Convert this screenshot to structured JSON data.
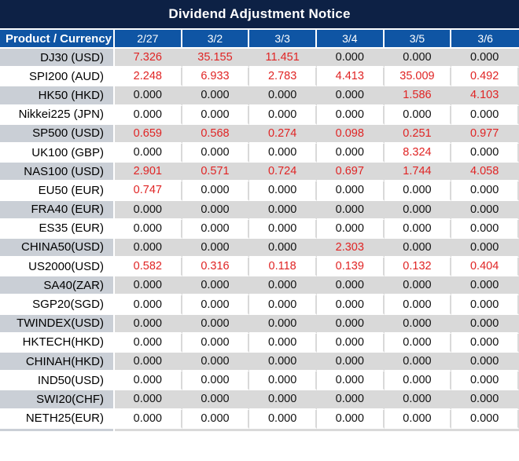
{
  "title": "Dividend Adjustment Notice",
  "colors": {
    "title_bar_bg": "#0d2145",
    "header_row_bg": "#0f55a4",
    "row_gray_bg": "#d9d9d9",
    "product_gray_bg": "#cacfd6",
    "row_white_bg": "#ffffff",
    "value_red": "#e02424",
    "value_black": "#111111",
    "header_text": "#ffffff"
  },
  "table": {
    "header": {
      "product_label": "Product / Currency",
      "dates": [
        "2/27",
        "3/2",
        "3/3",
        "3/4",
        "3/5",
        "3/6"
      ]
    },
    "rows": [
      {
        "product": "DJ30 (USD)",
        "values": [
          "7.326",
          "35.155",
          "11.451",
          "0.000",
          "0.000",
          "0.000"
        ],
        "red": [
          true,
          true,
          true,
          false,
          false,
          false
        ]
      },
      {
        "product": "SPI200 (AUD)",
        "values": [
          "2.248",
          "6.933",
          "2.783",
          "4.413",
          "35.009",
          "0.492"
        ],
        "red": [
          true,
          true,
          true,
          true,
          true,
          true
        ]
      },
      {
        "product": "HK50 (HKD)",
        "values": [
          "0.000",
          "0.000",
          "0.000",
          "0.000",
          "1.586",
          "4.103"
        ],
        "red": [
          false,
          false,
          false,
          false,
          true,
          true
        ]
      },
      {
        "product": "Nikkei225 (JPN)",
        "values": [
          "0.000",
          "0.000",
          "0.000",
          "0.000",
          "0.000",
          "0.000"
        ],
        "red": [
          false,
          false,
          false,
          false,
          false,
          false
        ]
      },
      {
        "product": "SP500 (USD)",
        "values": [
          "0.659",
          "0.568",
          "0.274",
          "0.098",
          "0.251",
          "0.977"
        ],
        "red": [
          true,
          true,
          true,
          true,
          true,
          true
        ]
      },
      {
        "product": "UK100 (GBP)",
        "values": [
          "0.000",
          "0.000",
          "0.000",
          "0.000",
          "8.324",
          "0.000"
        ],
        "red": [
          false,
          false,
          false,
          false,
          true,
          false
        ]
      },
      {
        "product": "NAS100 (USD)",
        "values": [
          "2.901",
          "0.571",
          "0.724",
          "0.697",
          "1.744",
          "4.058"
        ],
        "red": [
          true,
          true,
          true,
          true,
          true,
          true
        ]
      },
      {
        "product": "EU50 (EUR)",
        "values": [
          "0.747",
          "0.000",
          "0.000",
          "0.000",
          "0.000",
          "0.000"
        ],
        "red": [
          true,
          false,
          false,
          false,
          false,
          false
        ]
      },
      {
        "product": "FRA40 (EUR)",
        "values": [
          "0.000",
          "0.000",
          "0.000",
          "0.000",
          "0.000",
          "0.000"
        ],
        "red": [
          false,
          false,
          false,
          false,
          false,
          false
        ]
      },
      {
        "product": "ES35 (EUR)",
        "values": [
          "0.000",
          "0.000",
          "0.000",
          "0.000",
          "0.000",
          "0.000"
        ],
        "red": [
          false,
          false,
          false,
          false,
          false,
          false
        ]
      },
      {
        "product": "CHINA50(USD)",
        "values": [
          "0.000",
          "0.000",
          "0.000",
          "2.303",
          "0.000",
          "0.000"
        ],
        "red": [
          false,
          false,
          false,
          true,
          false,
          false
        ]
      },
      {
        "product": "US2000(USD)",
        "values": [
          "0.582",
          "0.316",
          "0.118",
          "0.139",
          "0.132",
          "0.404"
        ],
        "red": [
          true,
          true,
          true,
          true,
          true,
          true
        ]
      },
      {
        "product": "SA40(ZAR)",
        "values": [
          "0.000",
          "0.000",
          "0.000",
          "0.000",
          "0.000",
          "0.000"
        ],
        "red": [
          false,
          false,
          false,
          false,
          false,
          false
        ]
      },
      {
        "product": "SGP20(SGD)",
        "values": [
          "0.000",
          "0.000",
          "0.000",
          "0.000",
          "0.000",
          "0.000"
        ],
        "red": [
          false,
          false,
          false,
          false,
          false,
          false
        ]
      },
      {
        "product": "TWINDEX(USD)",
        "values": [
          "0.000",
          "0.000",
          "0.000",
          "0.000",
          "0.000",
          "0.000"
        ],
        "red": [
          false,
          false,
          false,
          false,
          false,
          false
        ]
      },
      {
        "product": "HKTECH(HKD)",
        "values": [
          "0.000",
          "0.000",
          "0.000",
          "0.000",
          "0.000",
          "0.000"
        ],
        "red": [
          false,
          false,
          false,
          false,
          false,
          false
        ]
      },
      {
        "product": "CHINAH(HKD)",
        "values": [
          "0.000",
          "0.000",
          "0.000",
          "0.000",
          "0.000",
          "0.000"
        ],
        "red": [
          false,
          false,
          false,
          false,
          false,
          false
        ]
      },
      {
        "product": "IND50(USD)",
        "values": [
          "0.000",
          "0.000",
          "0.000",
          "0.000",
          "0.000",
          "0.000"
        ],
        "red": [
          false,
          false,
          false,
          false,
          false,
          false
        ]
      },
      {
        "product": "SWI20(CHF)",
        "values": [
          "0.000",
          "0.000",
          "0.000",
          "0.000",
          "0.000",
          "0.000"
        ],
        "red": [
          false,
          false,
          false,
          false,
          false,
          false
        ]
      },
      {
        "product": "NETH25(EUR)",
        "values": [
          "0.000",
          "0.000",
          "0.000",
          "0.000",
          "0.000",
          "0.000"
        ],
        "red": [
          false,
          false,
          false,
          false,
          false,
          false
        ]
      }
    ]
  }
}
